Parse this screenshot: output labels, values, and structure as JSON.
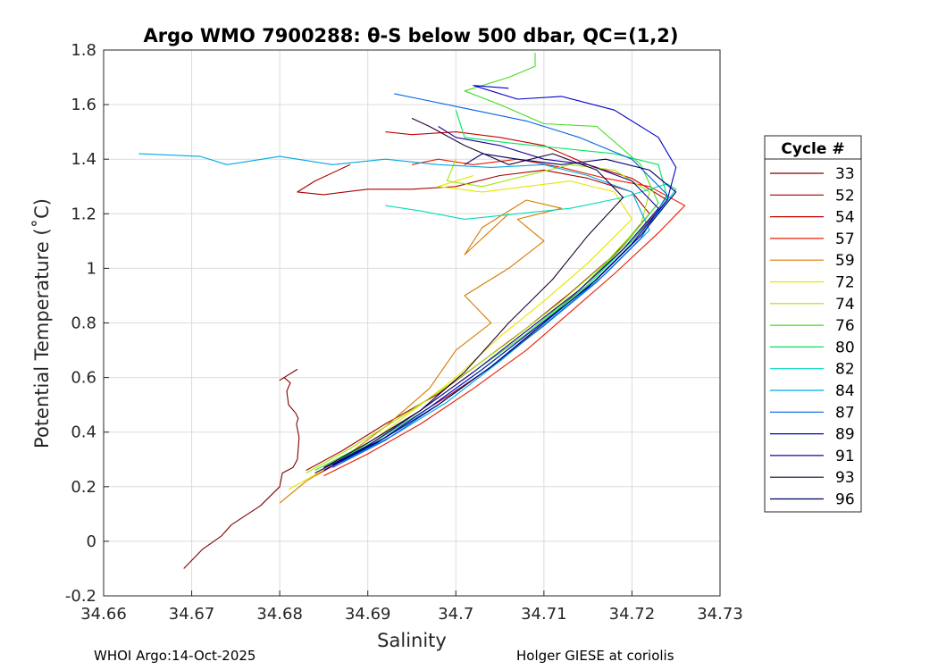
{
  "chart_data": {
    "type": "line",
    "title": "Argo WMO 7900288: θ-S below 500 dbar,  QC=(1,2)",
    "xlabel": "Salinity",
    "ylabel": "Potential Temperature (˚C)",
    "xlim": [
      34.66,
      34.73
    ],
    "ylim": [
      -0.2,
      1.8
    ],
    "xticks": [
      34.66,
      34.67,
      34.68,
      34.69,
      34.7,
      34.71,
      34.72,
      34.73
    ],
    "xtick_labels": [
      "34.66",
      "34.67",
      "34.68",
      "34.69",
      "34.7",
      "34.71",
      "34.72",
      "34.73"
    ],
    "yticks": [
      -0.2,
      0,
      0.2,
      0.4,
      0.6,
      0.8,
      1.0,
      1.2,
      1.4,
      1.6,
      1.8
    ],
    "ytick_labels": [
      "-0.2",
      "0",
      "0.2",
      "0.4",
      "0.6",
      "0.8",
      "1",
      "1.2",
      "1.4",
      "1.6",
      "1.8"
    ],
    "grid": true,
    "legend_title": "Cycle #",
    "legend_position": "right-outside",
    "series": [
      {
        "name": "33",
        "color": "#7f0000",
        "x": [
          34.6691,
          34.6712,
          34.6734,
          34.6745,
          34.6778,
          34.68,
          34.6803,
          34.6815,
          34.682,
          34.6822,
          34.6819,
          34.6821,
          34.6818,
          34.681,
          34.6808,
          34.6812,
          34.6805,
          34.68,
          34.682
        ],
        "y": [
          -0.1,
          -0.03,
          0.02,
          0.06,
          0.13,
          0.2,
          0.25,
          0.27,
          0.3,
          0.38,
          0.43,
          0.45,
          0.47,
          0.5,
          0.55,
          0.58,
          0.6,
          0.59,
          0.63
        ]
      },
      {
        "name": "52",
        "color": "#a50000",
        "x": [
          34.683,
          34.687,
          34.692,
          34.698,
          34.703,
          34.708,
          34.713,
          34.718,
          34.722,
          34.72,
          34.715,
          34.71,
          34.705,
          34.7,
          34.695,
          34.69,
          34.685,
          34.682,
          34.684,
          34.688
        ],
        "y": [
          0.26,
          0.33,
          0.43,
          0.54,
          0.66,
          0.78,
          0.91,
          1.05,
          1.2,
          1.28,
          1.33,
          1.36,
          1.34,
          1.3,
          1.29,
          1.29,
          1.27,
          1.28,
          1.32,
          1.38
        ]
      },
      {
        "name": "54",
        "color": "#c80000",
        "x": [
          34.684,
          34.688,
          34.693,
          34.699,
          34.705,
          34.71,
          34.715,
          34.72,
          34.724,
          34.72,
          34.715,
          34.71,
          34.705,
          34.7,
          34.695,
          34.692
        ],
        "y": [
          0.24,
          0.31,
          0.41,
          0.53,
          0.66,
          0.8,
          0.95,
          1.1,
          1.25,
          1.33,
          1.38,
          1.45,
          1.48,
          1.5,
          1.49,
          1.5
        ]
      },
      {
        "name": "57",
        "color": "#ed1c00",
        "x": [
          34.685,
          34.69,
          34.696,
          34.702,
          34.708,
          34.713,
          34.718,
          34.723,
          34.726,
          34.722,
          34.717,
          34.712,
          34.707,
          34.702,
          34.698,
          34.695
        ],
        "y": [
          0.24,
          0.32,
          0.43,
          0.56,
          0.7,
          0.84,
          0.98,
          1.13,
          1.23,
          1.3,
          1.33,
          1.37,
          1.4,
          1.38,
          1.4,
          1.38
        ]
      },
      {
        "name": "59",
        "color": "#d87a00",
        "x": [
          34.68,
          34.683,
          34.687,
          34.692,
          34.697,
          34.7,
          34.704,
          34.701,
          34.706,
          34.71,
          34.707,
          34.712,
          34.708,
          34.703,
          34.701,
          34.706
        ],
        "y": [
          0.14,
          0.22,
          0.3,
          0.42,
          0.56,
          0.7,
          0.8,
          0.9,
          1.0,
          1.1,
          1.18,
          1.22,
          1.25,
          1.15,
          1.05,
          1.2
        ]
      },
      {
        "name": "72",
        "color": "#e6e600",
        "x": [
          34.681,
          34.686,
          34.691,
          34.696,
          34.7,
          34.705,
          34.71,
          34.715,
          34.72,
          34.718,
          34.713,
          34.708,
          34.703,
          34.698,
          34.702
        ],
        "y": [
          0.19,
          0.28,
          0.38,
          0.5,
          0.6,
          0.75,
          0.88,
          1.02,
          1.18,
          1.28,
          1.32,
          1.3,
          1.28,
          1.3,
          1.34
        ]
      },
      {
        "name": "74",
        "color": "#a4e600",
        "x": [
          34.683,
          34.688,
          34.694,
          34.7,
          34.706,
          34.712,
          34.717,
          34.721,
          34.722,
          34.718,
          34.713,
          34.708,
          34.703,
          34.699,
          34.7
        ],
        "y": [
          0.25,
          0.34,
          0.46,
          0.59,
          0.73,
          0.88,
          1.02,
          1.16,
          1.28,
          1.36,
          1.38,
          1.34,
          1.3,
          1.32,
          1.4
        ]
      },
      {
        "name": "76",
        "color": "#44dd22",
        "x": [
          34.684,
          34.69,
          34.696,
          34.702,
          34.708,
          34.714,
          34.719,
          34.723,
          34.721,
          34.716,
          34.71,
          34.705,
          34.701,
          34.706,
          34.709,
          34.709
        ],
        "y": [
          0.26,
          0.36,
          0.48,
          0.62,
          0.76,
          0.92,
          1.08,
          1.24,
          1.38,
          1.52,
          1.53,
          1.6,
          1.65,
          1.7,
          1.74,
          1.79
        ]
      },
      {
        "name": "80",
        "color": "#00e65a",
        "x": [
          34.685,
          34.691,
          34.697,
          34.703,
          34.709,
          34.715,
          34.72,
          34.724,
          34.723,
          34.718,
          34.712,
          34.706,
          34.701,
          34.7
        ],
        "y": [
          0.27,
          0.37,
          0.49,
          0.63,
          0.78,
          0.94,
          1.1,
          1.26,
          1.38,
          1.42,
          1.44,
          1.46,
          1.48,
          1.58
        ]
      },
      {
        "name": "82",
        "color": "#00ddbb",
        "x": [
          34.686,
          34.692,
          34.698,
          34.704,
          34.71,
          34.716,
          34.721,
          34.725,
          34.724,
          34.719,
          34.713,
          34.707,
          34.701,
          34.696,
          34.692
        ],
        "y": [
          0.28,
          0.38,
          0.5,
          0.64,
          0.8,
          0.96,
          1.12,
          1.29,
          1.31,
          1.26,
          1.22,
          1.2,
          1.18,
          1.21,
          1.23
        ]
      },
      {
        "name": "84",
        "color": "#00a7e6",
        "x": [
          34.687,
          34.693,
          34.699,
          34.705,
          34.711,
          34.717,
          34.722,
          34.72,
          34.715,
          34.71,
          34.704,
          34.698,
          34.692,
          34.686,
          34.68,
          34.676,
          34.674,
          34.671,
          34.664
        ],
        "y": [
          0.29,
          0.39,
          0.51,
          0.66,
          0.82,
          0.98,
          1.14,
          1.28,
          1.34,
          1.38,
          1.37,
          1.38,
          1.4,
          1.38,
          1.41,
          1.39,
          1.38,
          1.41,
          1.42
        ]
      },
      {
        "name": "87",
        "color": "#0062e6",
        "x": [
          34.686,
          34.692,
          34.698,
          34.704,
          34.71,
          34.716,
          34.721,
          34.724,
          34.72,
          34.714,
          34.708,
          34.702,
          34.696,
          34.693
        ],
        "y": [
          0.27,
          0.37,
          0.5,
          0.64,
          0.79,
          0.95,
          1.11,
          1.27,
          1.4,
          1.48,
          1.54,
          1.58,
          1.62,
          1.64
        ]
      },
      {
        "name": "89",
        "color": "#0000cc",
        "x": [
          34.685,
          34.691,
          34.697,
          34.703,
          34.709,
          34.715,
          34.72,
          34.724,
          34.725,
          34.723,
          34.718,
          34.712,
          34.707,
          34.702,
          34.706
        ],
        "y": [
          0.26,
          0.36,
          0.49,
          0.63,
          0.78,
          0.93,
          1.09,
          1.25,
          1.37,
          1.48,
          1.58,
          1.63,
          1.62,
          1.67,
          1.66
        ]
      },
      {
        "name": "91",
        "color": "#1a0099",
        "x": [
          34.684,
          34.69,
          34.696,
          34.702,
          34.708,
          34.714,
          34.719,
          34.723,
          34.72,
          34.715,
          34.71,
          34.705,
          34.7,
          34.698
        ],
        "y": [
          0.25,
          0.35,
          0.48,
          0.62,
          0.77,
          0.92,
          1.07,
          1.22,
          1.32,
          1.38,
          1.4,
          1.45,
          1.48,
          1.52
        ]
      },
      {
        "name": "93",
        "color": "#22002e",
        "x": [
          34.685,
          34.69,
          34.696,
          34.701,
          34.706,
          34.711,
          34.715,
          34.719,
          34.716,
          34.711,
          34.706,
          34.701,
          34.697,
          34.695
        ],
        "y": [
          0.27,
          0.36,
          0.48,
          0.62,
          0.8,
          0.96,
          1.12,
          1.26,
          1.36,
          1.42,
          1.38,
          1.45,
          1.52,
          1.55
        ]
      },
      {
        "name": "96",
        "color": "#000066",
        "x": [
          34.686,
          34.692,
          34.698,
          34.704,
          34.71,
          34.716,
          34.721,
          34.725,
          34.722,
          34.717,
          34.712,
          34.707,
          34.703,
          34.701
        ],
        "y": [
          0.28,
          0.38,
          0.5,
          0.64,
          0.8,
          0.96,
          1.12,
          1.28,
          1.36,
          1.4,
          1.38,
          1.4,
          1.42,
          1.38
        ]
      }
    ]
  },
  "footer": {
    "left": "WHOI Argo:14-Oct-2025",
    "right": "Holger GIESE at coriolis"
  }
}
